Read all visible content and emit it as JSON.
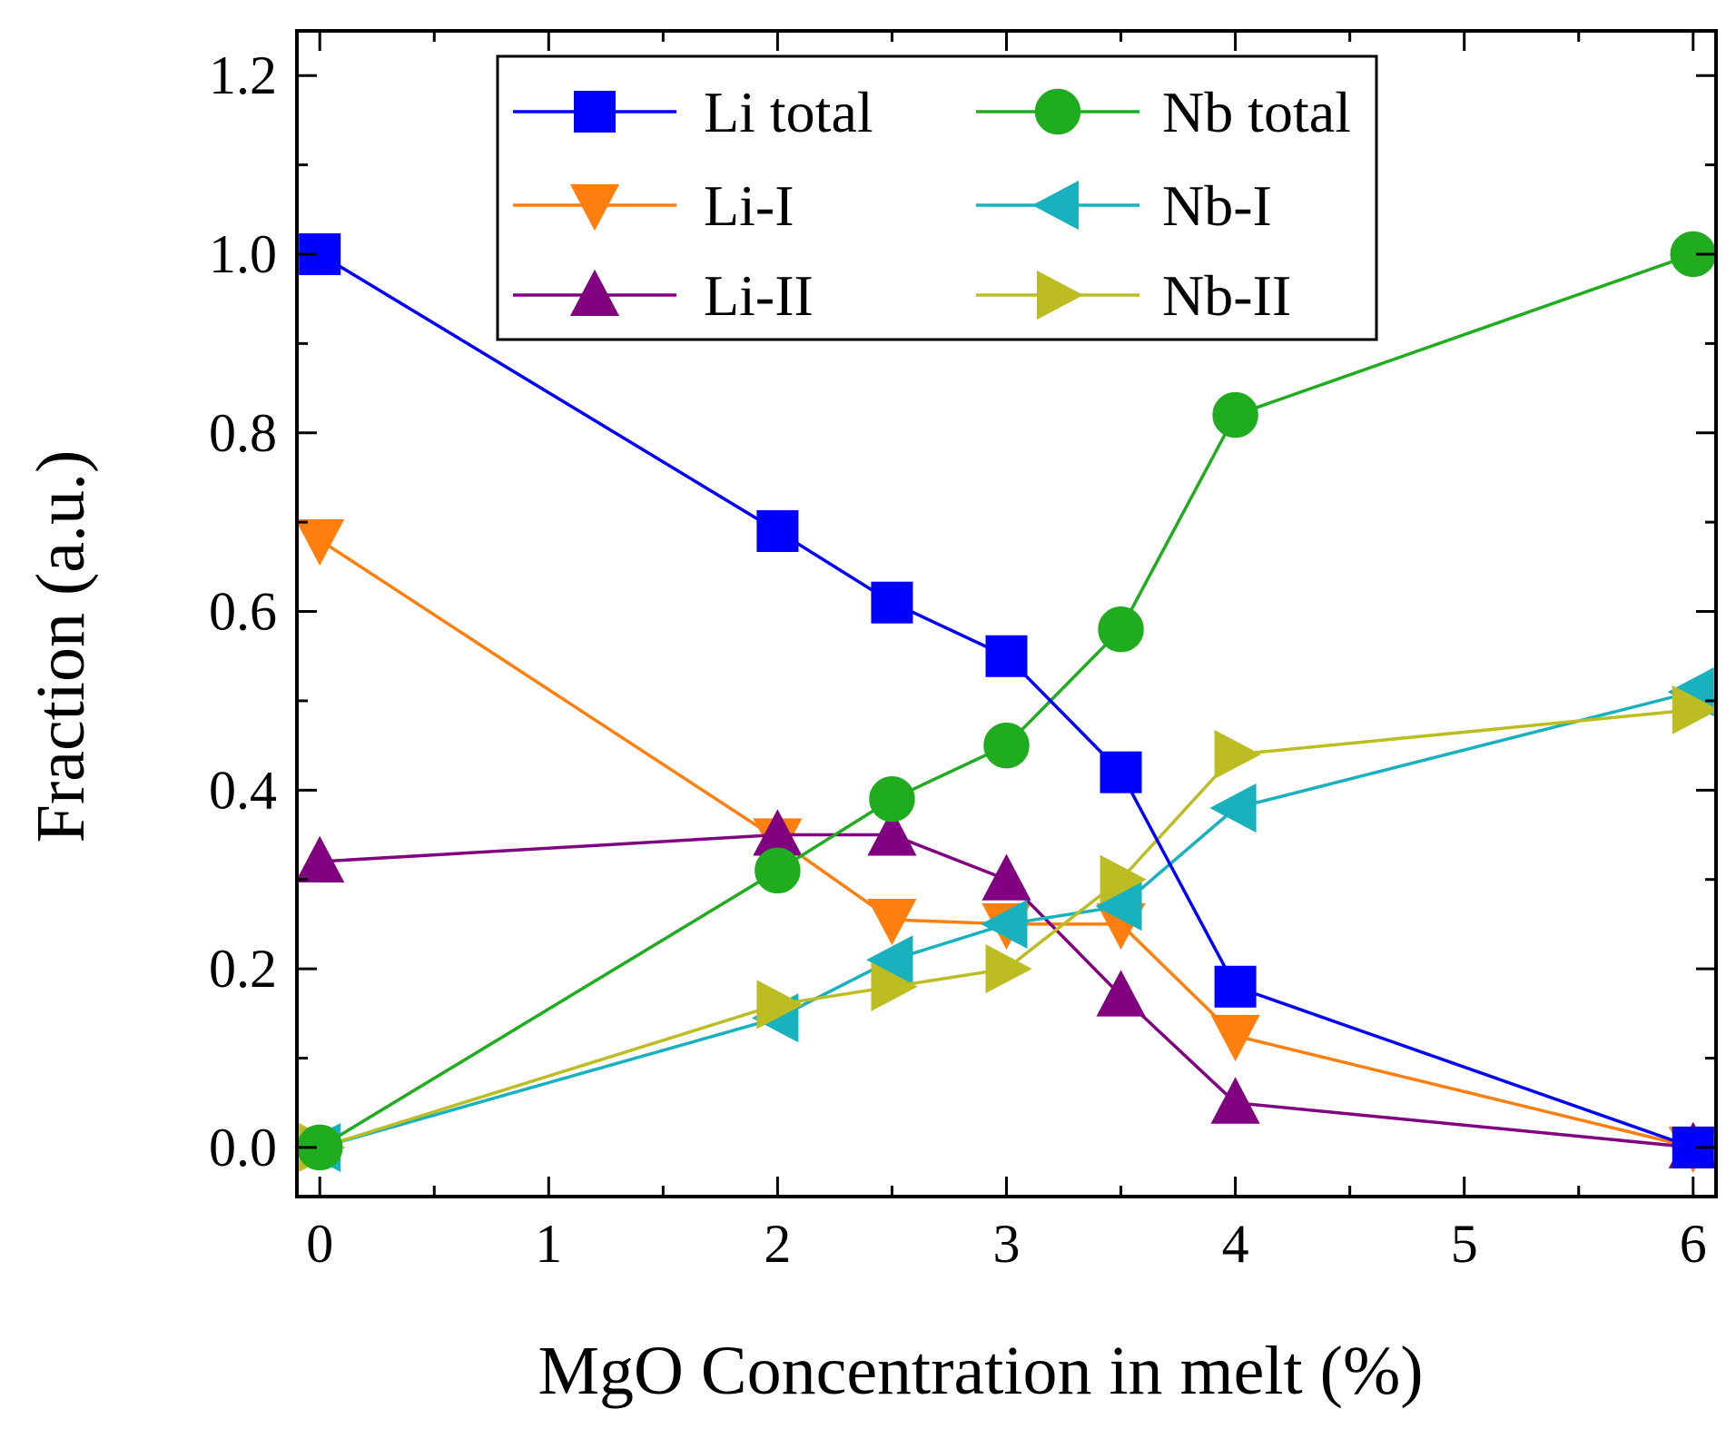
{
  "chart_data": {
    "type": "line",
    "title": "",
    "xlabel": "MgO Concentration in melt (%)",
    "ylabel": "Fraction (a.u.)",
    "xlim": [
      -0.1,
      6.1
    ],
    "ylim": [
      -0.055,
      1.25
    ],
    "x_ticks": [
      0,
      1,
      2,
      3,
      4,
      5,
      6
    ],
    "x_tick_labels": [
      "0",
      "1",
      "2",
      "3",
      "4",
      "5",
      "6"
    ],
    "y_ticks": [
      0,
      0.2,
      0.4,
      0.6,
      0.8,
      1.0,
      1.2
    ],
    "y_tick_labels": [
      "0.0",
      "0.2",
      "0.4",
      "0.6",
      "0.8",
      "1.0",
      "1.2"
    ],
    "legend_position": "top-center, two columns, boxed",
    "grid": false,
    "series": [
      {
        "name": "Li total",
        "color": "#0000ff",
        "marker": "square",
        "x": [
          0,
          2,
          2.5,
          3,
          3.5,
          4,
          6
        ],
        "values": [
          1.0,
          0.69,
          0.61,
          0.55,
          0.42,
          0.18,
          0.0
        ]
      },
      {
        "name": "Nb total",
        "color": "#1fad1f",
        "marker": "circle",
        "x": [
          0,
          2,
          2.5,
          3,
          3.5,
          4,
          6
        ],
        "values": [
          0.0,
          0.31,
          0.39,
          0.45,
          0.58,
          0.82,
          1.0
        ]
      },
      {
        "name": "Li-I",
        "color": "#ff7f0e",
        "marker": "triangle-down",
        "x": [
          0,
          2,
          2.5,
          3,
          3.5,
          4,
          6
        ],
        "values": [
          0.68,
          0.345,
          0.255,
          0.25,
          0.25,
          0.125,
          0.0
        ]
      },
      {
        "name": "Nb-I",
        "color": "#17b2be",
        "marker": "triangle-left",
        "x": [
          0,
          2,
          2.5,
          3,
          3.5,
          4,
          6
        ],
        "values": [
          0.0,
          0.145,
          0.21,
          0.25,
          0.27,
          0.38,
          0.51
        ]
      },
      {
        "name": "Li-II",
        "color": "#800080",
        "marker": "triangle-up",
        "x": [
          0,
          2,
          2.5,
          3,
          3.5,
          4,
          6
        ],
        "values": [
          0.32,
          0.35,
          0.35,
          0.3,
          0.17,
          0.05,
          0.0
        ]
      },
      {
        "name": "Nb-II",
        "color": "#bcbd22",
        "marker": "triangle-right",
        "x": [
          0,
          2,
          2.5,
          3,
          3.5,
          4,
          6
        ],
        "values": [
          0.0,
          0.16,
          0.18,
          0.2,
          0.3,
          0.44,
          0.49
        ]
      }
    ]
  }
}
